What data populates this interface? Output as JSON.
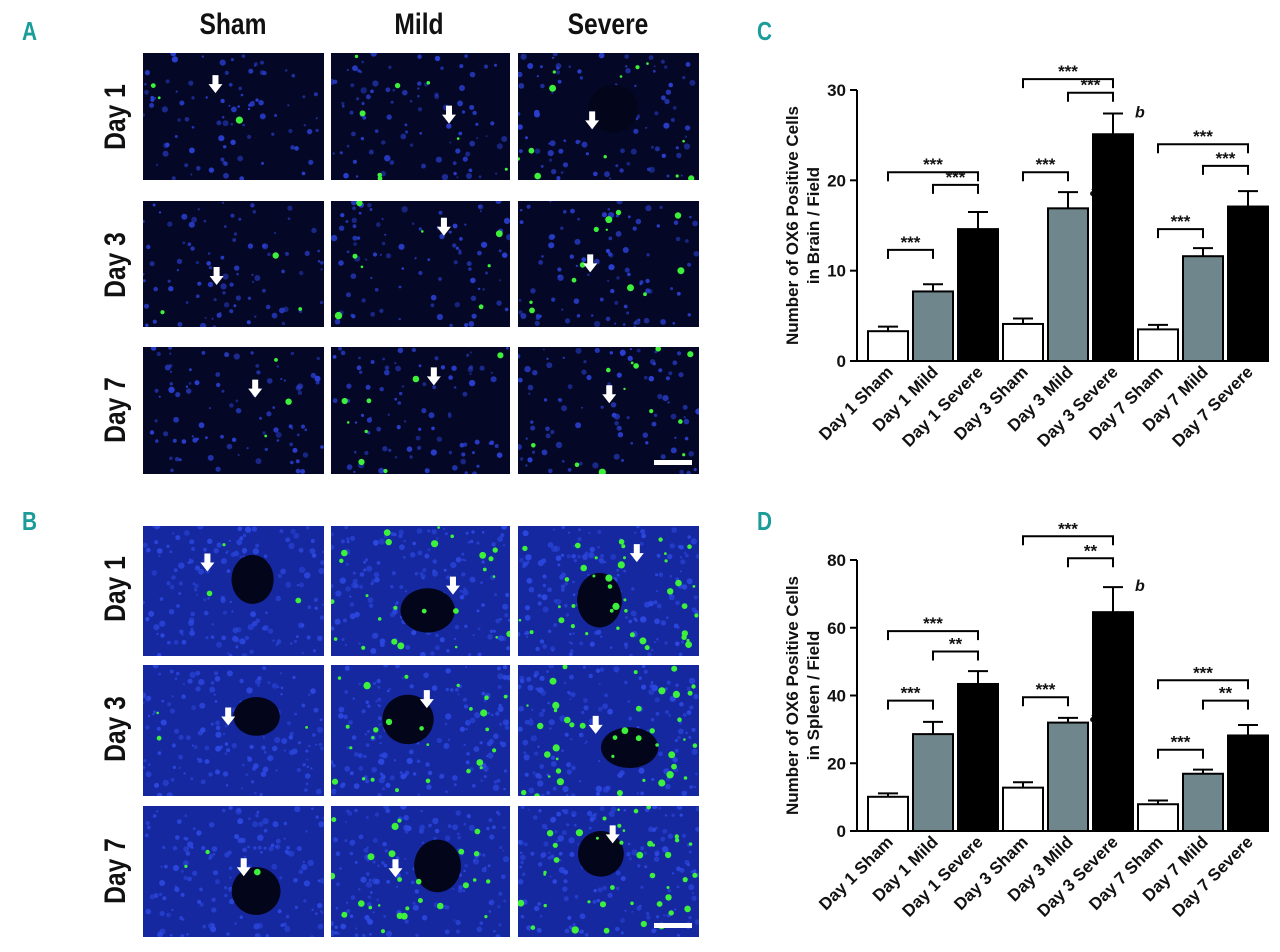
{
  "panels": {
    "A": {
      "letter": "A"
    },
    "B": {
      "letter": "B"
    },
    "C": {
      "letter": "C"
    },
    "D": {
      "letter": "D"
    }
  },
  "micrographs": {
    "columns": [
      "Sham",
      "Mild",
      "Severe"
    ],
    "rows": [
      "Day 1",
      "Day 3",
      "Day 7"
    ]
  },
  "colors": {
    "accent": "#1a9c9a",
    "sham": "#ffffff",
    "mild": "#6f868c",
    "severe": "#000000",
    "nuclei": "#1f35c8",
    "marker": "#3cf03c"
  },
  "chart_data": [
    {
      "type": "bar",
      "panel": "C",
      "categories": [
        "Day 1 Sham",
        "Day 1 Mild",
        "Day 1 Severe",
        "Day 3 Sham",
        "Day 3 Mild",
        "Day 3 Severe",
        "Day 7 Sham",
        "Day 7 Mild",
        "Day 7 Severe"
      ],
      "values": [
        3.3,
        7.7,
        14.6,
        4.1,
        16.9,
        25.1,
        3.5,
        11.6,
        17.1
      ],
      "errors": [
        0.5,
        0.8,
        1.9,
        0.6,
        1.8,
        2.3,
        0.5,
        0.9,
        1.7
      ],
      "ylabel_lines": [
        "Number of OX6 Positive Cells",
        "in Brain / Field"
      ],
      "ylim": [
        0,
        30
      ],
      "yticks": [
        0,
        10,
        20,
        30
      ],
      "bar_labels": [
        "",
        "",
        "",
        "",
        "a",
        "b",
        "",
        "",
        ""
      ],
      "significance": [
        {
          "from": 0,
          "to": 1,
          "label": "***"
        },
        {
          "from": 1,
          "to": 2,
          "label": "***"
        },
        {
          "from": 0,
          "to": 2,
          "label": "***"
        },
        {
          "from": 3,
          "to": 4,
          "label": "***"
        },
        {
          "from": 4,
          "to": 5,
          "label": "***"
        },
        {
          "from": 3,
          "to": 5,
          "label": "***"
        },
        {
          "from": 6,
          "to": 7,
          "label": "***"
        },
        {
          "from": 7,
          "to": 8,
          "label": "***"
        },
        {
          "from": 6,
          "to": 8,
          "label": "***"
        }
      ],
      "significance_levels": [
        12.3,
        19.5,
        20.9,
        20.9,
        29.7,
        31.2,
        14.6,
        21.6,
        24.0
      ]
    },
    {
      "type": "bar",
      "panel": "D",
      "categories": [
        "Day 1 Sham",
        "Day 1 Mild",
        "Day 1 Severe",
        "Day 3 Sham",
        "Day 3 Mild",
        "Day 3 Severe",
        "Day 7 Sham",
        "Day 7 Mild",
        "Day 7 Severe"
      ],
      "values": [
        10.1,
        28.6,
        43.4,
        12.8,
        32.0,
        64.6,
        7.9,
        16.9,
        28.2
      ],
      "errors": [
        1.0,
        3.6,
        3.8,
        1.6,
        1.4,
        7.4,
        1.1,
        1.2,
        3.1
      ],
      "ylabel_lines": [
        "Number of OX6 Positive Cells",
        "in Spleen / Field"
      ],
      "ylim": [
        0,
        80
      ],
      "yticks": [
        0,
        20,
        40,
        60,
        80
      ],
      "bar_labels": [
        "",
        "",
        "",
        "",
        "a",
        "b",
        "",
        "",
        ""
      ],
      "significance": [
        {
          "from": 0,
          "to": 1,
          "label": "***"
        },
        {
          "from": 1,
          "to": 2,
          "label": "**"
        },
        {
          "from": 0,
          "to": 2,
          "label": "***"
        },
        {
          "from": 3,
          "to": 4,
          "label": "***"
        },
        {
          "from": 4,
          "to": 5,
          "label": "**"
        },
        {
          "from": 3,
          "to": 5,
          "label": "***"
        },
        {
          "from": 6,
          "to": 7,
          "label": "***"
        },
        {
          "from": 7,
          "to": 8,
          "label": "**"
        },
        {
          "from": 6,
          "to": 8,
          "label": "***"
        }
      ],
      "significance_levels": [
        38.5,
        53.0,
        59.0,
        39.5,
        80.5,
        87.0,
        24.0,
        38.5,
        44.5
      ]
    }
  ]
}
